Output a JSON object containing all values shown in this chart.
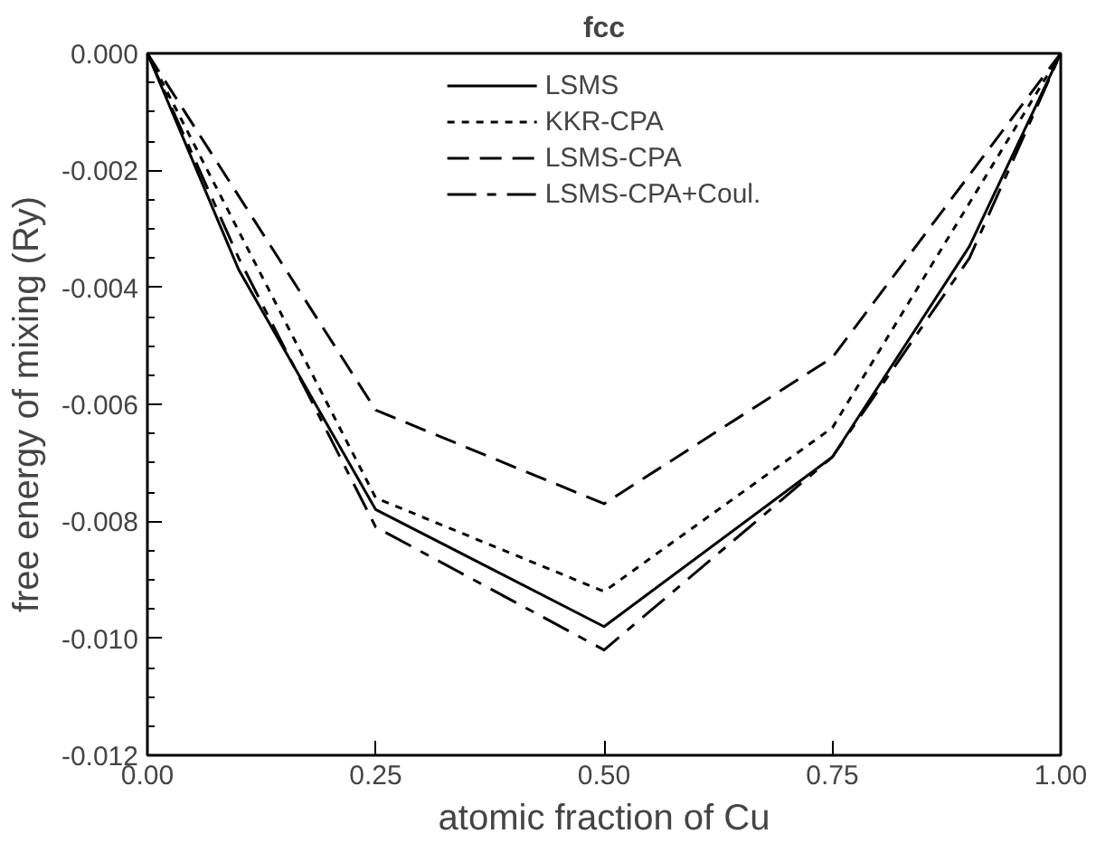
{
  "chart_data": {
    "type": "line",
    "title": "fcc",
    "xlabel": "atomic fraction of Cu",
    "ylabel": "free energy of mixing (Ry)",
    "xlim": [
      0,
      1
    ],
    "xticks": [
      {
        "value": 0,
        "label": "0.00"
      },
      {
        "value": 0.25,
        "label": "0.25"
      },
      {
        "value": 0.5,
        "label": "0.50"
      },
      {
        "value": 0.75,
        "label": "0.75"
      },
      {
        "value": 1,
        "label": "1.00"
      }
    ],
    "ylim": [
      -0.012,
      0
    ],
    "yticks": [
      {
        "value": -0.012,
        "label": "-0.012"
      },
      {
        "value": -0.01,
        "label": "-0.010"
      },
      {
        "value": -0.008,
        "label": "-0.008"
      },
      {
        "value": -0.006,
        "label": "-0.006"
      },
      {
        "value": -0.004,
        "label": "-0.004"
      },
      {
        "value": -0.002,
        "label": "-0.002"
      },
      {
        "value": 0,
        "label": "0.000"
      }
    ],
    "grid": false,
    "legend": "top",
    "marker": "none",
    "series": [
      {
        "name": "LSMS",
        "color": "#000000",
        "line_style": "solid",
        "x": [
          0,
          0.1,
          0.25,
          0.5,
          0.75,
          0.9,
          1
        ],
        "values": [
          0,
          -0.0037,
          -0.0078,
          -0.0098,
          -0.0069,
          -0.0033,
          0
        ]
      },
      {
        "name": "KKR-CPA",
        "color": "#000000",
        "line_style": "dotted",
        "x": [
          0,
          0.25,
          0.5,
          0.75,
          1
        ],
        "values": [
          0,
          -0.0076,
          -0.0092,
          -0.0064,
          0
        ]
      },
      {
        "name": "LSMS-CPA",
        "color": "#000000",
        "line_style": "dashed",
        "x": [
          0,
          0.25,
          0.5,
          0.75,
          1
        ],
        "values": [
          0,
          -0.0061,
          -0.0077,
          -0.0052,
          0
        ]
      },
      {
        "name": "LSMS-CPA+Coul.",
        "color": "#000000",
        "line_style": "dashdot",
        "x": [
          0,
          0.1,
          0.25,
          0.5,
          0.75,
          0.9,
          1
        ],
        "values": [
          0,
          -0.0035,
          -0.0081,
          -0.0102,
          -0.0069,
          -0.0035,
          0
        ]
      }
    ]
  }
}
